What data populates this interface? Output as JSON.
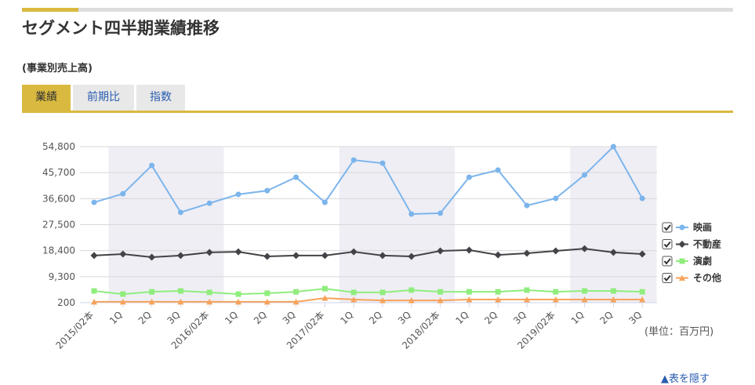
{
  "header": {
    "title": "セグメント四半期業績推移",
    "subtitle": "(事業別売上高)",
    "tabs": [
      "業績",
      "前期比",
      "指数"
    ]
  },
  "chart_data": {
    "type": "line",
    "categories": [
      "2015/02本",
      "1Q",
      "2Q",
      "3Q",
      "2016/02本",
      "1Q",
      "2Q",
      "3Q",
      "2017/02本",
      "1Q",
      "2Q",
      "3Q",
      "2018/02本",
      "1Q",
      "2Q",
      "3Q",
      "2019/02本",
      "1Q",
      "2Q",
      "3Q"
    ],
    "series": [
      {
        "name": "映画",
        "color": "#7cb5ec",
        "values": [
          35300,
          38300,
          48200,
          31800,
          35000,
          38100,
          39400,
          44100,
          35300,
          50100,
          49000,
          31200,
          31500,
          44100,
          46600,
          34200,
          36700,
          44900,
          54800,
          36700
        ]
      },
      {
        "name": "不動産",
        "color": "#434348",
        "values": [
          16700,
          17200,
          16100,
          16700,
          17800,
          18000,
          16400,
          16700,
          16700,
          18000,
          16700,
          16400,
          18300,
          18600,
          16900,
          17500,
          18300,
          19100,
          17800,
          17200
        ]
      },
      {
        "name": "演劇",
        "color": "#90ed7d",
        "values": [
          4300,
          3200,
          4000,
          4300,
          3800,
          3200,
          3500,
          4000,
          5100,
          3800,
          3800,
          4600,
          4000,
          4000,
          4000,
          4600,
          4000,
          4300,
          4300,
          4000
        ]
      },
      {
        "name": "その他",
        "color": "#f7a35c",
        "values": [
          500,
          500,
          500,
          500,
          500,
          500,
          500,
          500,
          1800,
          1300,
          1000,
          1000,
          1000,
          1300,
          1300,
          1300,
          1300,
          1300,
          1300,
          1300
        ]
      }
    ],
    "ylim": [
      200,
      54800
    ],
    "yticks": [
      200,
      {
        "value": 9300,
        "label": "9,300"
      },
      {
        "value": 18400,
        "label": "18,400"
      },
      {
        "value": 27500,
        "label": "27,500"
      },
      {
        "value": 36600,
        "label": "36,600"
      },
      {
        "value": 45700,
        "label": "45,700"
      },
      {
        "value": 54800,
        "label": "54,800"
      }
    ],
    "grid": true,
    "unit_label": "(単位：百万円)"
  },
  "footer": {
    "link": "▲表を隠す"
  }
}
